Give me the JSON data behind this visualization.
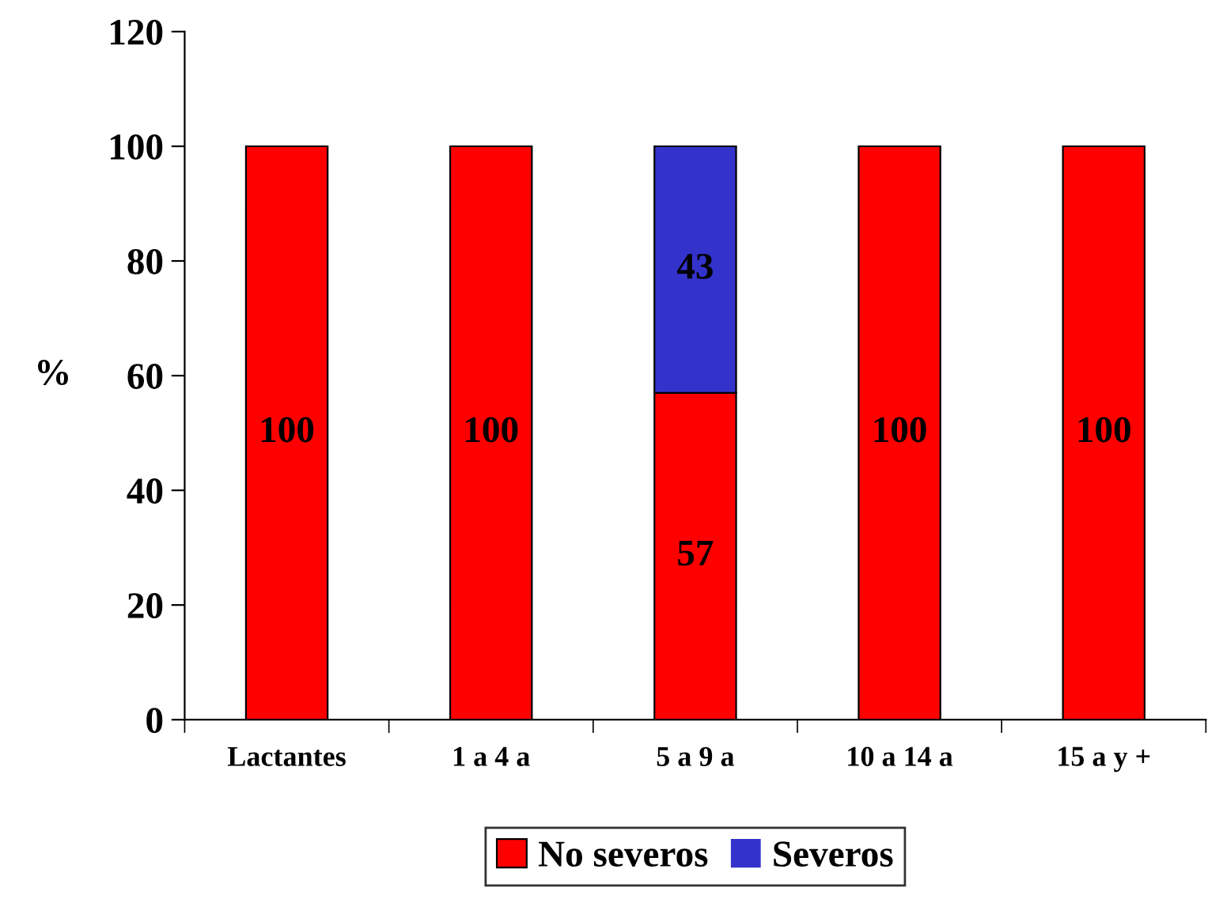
{
  "chart_data": {
    "type": "bar",
    "stacked": true,
    "ylabel": "%",
    "categories": [
      "Lactantes",
      "1 a 4 a",
      "5 a 9 a",
      "10 a 14 a",
      "15 a y +"
    ],
    "series": [
      {
        "name": "No severos",
        "color": "#ff0000",
        "values": [
          100,
          100,
          57,
          100,
          100
        ],
        "value_labels": [
          "100",
          "100",
          "57",
          "100",
          "100"
        ]
      },
      {
        "name": "Severos",
        "color": "#3333cc",
        "values": [
          0,
          0,
          43,
          0,
          0
        ],
        "value_labels": [
          null,
          null,
          "43",
          null,
          null
        ]
      }
    ],
    "ylim": [
      0,
      120
    ],
    "yticks": [
      0,
      20,
      40,
      60,
      80,
      100,
      120
    ],
    "grid": false,
    "legend": "bottom"
  }
}
